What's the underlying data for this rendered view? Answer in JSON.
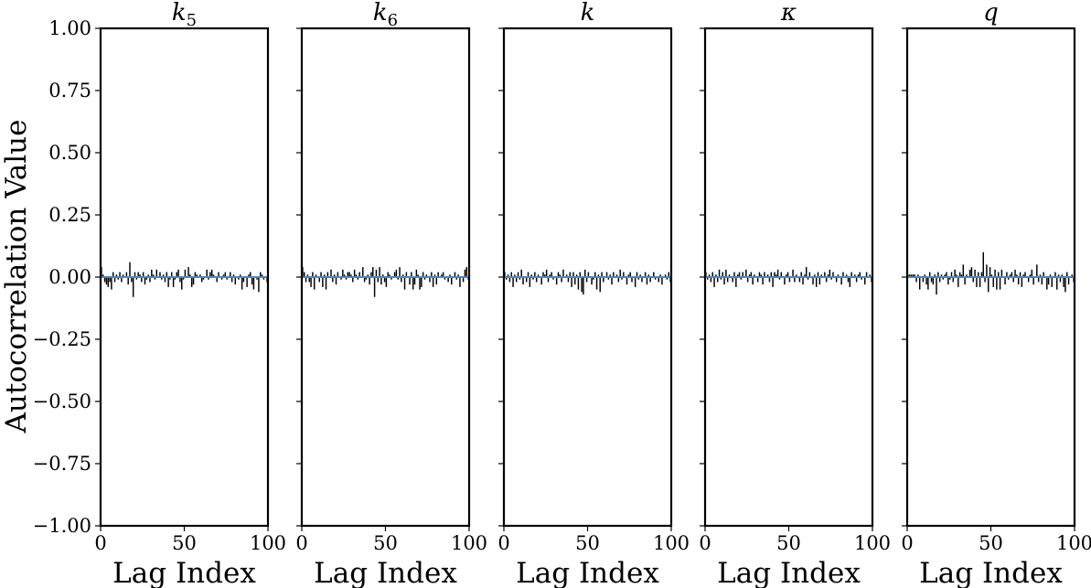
{
  "figure": {
    "ylabel": "Autocorrelation Value"
  },
  "style": {
    "bar_color": "#000000",
    "zero_line_color": "#4f86c0",
    "frame_color": "#000000"
  },
  "chart_data": [
    {
      "type": "bar",
      "title": "k5",
      "title_base": "k",
      "title_sub": "5",
      "xlabel": "Lag Index",
      "xlim": [
        0,
        100
      ],
      "ylim": [
        -1.0,
        1.0
      ],
      "xticks": [
        0,
        50,
        100
      ],
      "yticks": [
        -1.0,
        -0.75,
        -0.5,
        -0.25,
        0.0,
        0.25,
        0.5,
        0.75,
        1.0
      ],
      "grid": false,
      "values": [
        0.04,
        0.01,
        -0.02,
        -0.03,
        -0.04,
        -0.02,
        -0.05,
        0.02,
        -0.02,
        0.01,
        -0.01,
        0.02,
        -0.02,
        0.01,
        0.0,
        0.02,
        -0.03,
        0.06,
        -0.02,
        -0.08,
        0.02,
        -0.01,
        0.02,
        0.01,
        -0.02,
        0.02,
        -0.03,
        -0.01,
        0.01,
        -0.02,
        0.03,
        0.01,
        -0.01,
        0.03,
        0.0,
        0.02,
        -0.01,
        0.01,
        -0.02,
        0.02,
        -0.04,
        -0.01,
        0.02,
        -0.04,
        -0.01,
        0.02,
        0.03,
        -0.02,
        -0.05,
        -0.01,
        0.03,
        0.0,
        0.04,
        0.01,
        -0.04,
        -0.03,
        0.02,
        0.01,
        0.0,
        0.01,
        -0.02,
        -0.01,
        0.0,
        0.03,
        -0.01,
        0.02,
        0.03,
        0.01,
        0.0,
        -0.02,
        0.02,
        0.0,
        -0.01,
        0.01,
        0.02,
        -0.01,
        0.0,
        0.02,
        -0.02,
        0.01,
        -0.03,
        0.0,
        -0.01,
        0.01,
        -0.05,
        -0.02,
        0.0,
        -0.04,
        0.01,
        0.02,
        -0.03,
        -0.05,
        0.0,
        -0.01,
        -0.06,
        0.02,
        0.01,
        -0.01,
        0.0,
        -0.02
      ]
    },
    {
      "type": "bar",
      "title": "k6",
      "title_base": "k",
      "title_sub": "6",
      "xlabel": "Lag Index",
      "xlim": [
        0,
        100
      ],
      "ylim": [
        -1.0,
        1.0
      ],
      "xticks": [
        0,
        50,
        100
      ],
      "yticks": [
        -1.0,
        -0.75,
        -0.5,
        -0.25,
        0.0,
        0.25,
        0.5,
        0.75,
        1.0
      ],
      "grid": false,
      "values": [
        0.04,
        0.02,
        -0.02,
        0.01,
        -0.02,
        -0.04,
        0.02,
        -0.05,
        0.01,
        0.0,
        -0.02,
        0.02,
        -0.04,
        0.01,
        -0.05,
        0.02,
        0.0,
        0.03,
        -0.02,
        0.01,
        -0.03,
        0.02,
        0.0,
        -0.01,
        0.03,
        0.01,
        -0.01,
        0.02,
        0.02,
        0.01,
        -0.02,
        0.03,
        0.01,
        -0.01,
        0.02,
        0.0,
        0.04,
        -0.02,
        -0.01,
        0.01,
        -0.03,
        0.02,
        0.04,
        -0.08,
        0.03,
        -0.02,
        0.04,
        -0.03,
        0.01,
        -0.02,
        -0.04,
        0.02,
        0.01,
        -0.01,
        0.0,
        0.02,
        0.03,
        -0.01,
        0.04,
        -0.02,
        0.01,
        -0.05,
        0.02,
        0.0,
        -0.03,
        0.02,
        -0.05,
        -0.03,
        0.03,
        0.01,
        -0.05,
        -0.04,
        0.02,
        -0.01,
        0.01,
        0.0,
        -0.02,
        0.02,
        -0.04,
        0.01,
        -0.03,
        0.02,
        0.0,
        0.01,
        0.02,
        -0.01,
        0.0,
        -0.02,
        0.01,
        -0.03,
        0.0,
        0.02,
        -0.01,
        0.01,
        -0.04,
        0.0,
        -0.02,
        0.03,
        0.04,
        -0.01
      ]
    },
    {
      "type": "bar",
      "title": "k",
      "title_base": "k",
      "title_sub": "",
      "xlabel": "Lag Index",
      "xlim": [
        0,
        100
      ],
      "ylim": [
        -1.0,
        1.0
      ],
      "xticks": [
        0,
        50,
        100
      ],
      "yticks": [
        -1.0,
        -0.75,
        -0.5,
        -0.25,
        0.0,
        0.25,
        0.5,
        0.75,
        1.0
      ],
      "grid": false,
      "values": [
        0.02,
        -0.01,
        0.01,
        -0.02,
        0.02,
        -0.04,
        0.01,
        -0.02,
        0.02,
        -0.01,
        0.03,
        -0.03,
        0.0,
        -0.02,
        0.02,
        -0.04,
        0.01,
        -0.01,
        0.02,
        -0.02,
        0.01,
        0.0,
        -0.03,
        0.02,
        0.01,
        0.03,
        -0.02,
        0.01,
        0.02,
        -0.01,
        0.0,
        -0.03,
        0.02,
        0.01,
        -0.02,
        0.03,
        0.0,
        0.01,
        -0.02,
        0.02,
        -0.04,
        0.02,
        -0.03,
        0.01,
        -0.05,
        0.02,
        -0.06,
        -0.07,
        0.03,
        -0.02,
        0.02,
        0.0,
        -0.03,
        -0.01,
        0.02,
        -0.05,
        0.01,
        -0.06,
        0.02,
        -0.02,
        0.0,
        0.02,
        -0.01,
        0.01,
        -0.03,
        0.02,
        0.0,
        0.01,
        -0.02,
        0.03,
        -0.01,
        0.02,
        0.0,
        -0.03,
        0.01,
        0.02,
        -0.02,
        0.0,
        -0.04,
        0.02,
        -0.01,
        0.01,
        -0.02,
        0.0,
        0.02,
        -0.03,
        0.01,
        -0.02,
        0.0,
        0.02,
        -0.01,
        0.0,
        -0.02,
        0.01,
        -0.03,
        0.0,
        0.01,
        -0.01,
        0.02,
        -0.02
      ]
    },
    {
      "type": "bar",
      "title": "κ",
      "title_base": "κ",
      "title_sub": "",
      "xlabel": "Lag Index",
      "xlim": [
        0,
        100
      ],
      "ylim": [
        -1.0,
        1.0
      ],
      "xticks": [
        0,
        50,
        100
      ],
      "yticks": [
        -1.0,
        -0.75,
        -0.5,
        -0.25,
        0.0,
        0.25,
        0.5,
        0.75,
        1.0
      ],
      "grid": false,
      "values": [
        0.02,
        -0.01,
        0.01,
        -0.02,
        0.02,
        -0.04,
        0.01,
        -0.02,
        0.03,
        -0.01,
        0.02,
        -0.03,
        0.03,
        -0.02,
        0.01,
        0.0,
        -0.02,
        0.02,
        -0.04,
        0.01,
        0.02,
        -0.01,
        0.02,
        0.0,
        0.03,
        -0.02,
        0.01,
        0.02,
        -0.03,
        0.01,
        0.0,
        -0.02,
        0.02,
        0.01,
        -0.03,
        0.02,
        0.0,
        0.01,
        -0.02,
        0.02,
        -0.04,
        0.02,
        0.01,
        0.03,
        -0.01,
        0.02,
        0.0,
        -0.03,
        0.01,
        0.02,
        -0.02,
        0.0,
        0.03,
        -0.02,
        0.01,
        0.0,
        -0.02,
        0.02,
        -0.03,
        0.01,
        0.04,
        -0.01,
        0.02,
        0.0,
        -0.03,
        0.01,
        -0.04,
        0.02,
        -0.03,
        0.01,
        0.0,
        0.02,
        -0.02,
        0.01,
        0.03,
        -0.01,
        0.02,
        0.0,
        -0.02,
        0.01,
        0.0,
        -0.03,
        0.02,
        0.0,
        0.01,
        -0.02,
        -0.04,
        0.02,
        0.0,
        0.01,
        -0.02,
        0.01,
        0.02,
        -0.01,
        0.0,
        -0.03,
        0.02,
        0.0,
        0.01,
        -0.02
      ]
    },
    {
      "type": "bar",
      "title": "q",
      "title_base": "q",
      "title_sub": "",
      "xlabel": "Lag Index",
      "xlim": [
        0,
        100
      ],
      "ylim": [
        -1.0,
        1.0
      ],
      "xticks": [
        0,
        50,
        100
      ],
      "yticks": [
        -1.0,
        -0.75,
        -0.5,
        -0.25,
        0.0,
        0.25,
        0.5,
        0.75,
        1.0
      ],
      "grid": false,
      "values": [
        0.01,
        0.01,
        0.01,
        0.01,
        0.01,
        -0.02,
        0.01,
        -0.05,
        0.0,
        -0.02,
        0.01,
        -0.03,
        -0.05,
        0.02,
        -0.02,
        -0.03,
        0.01,
        -0.07,
        0.02,
        -0.02,
        0.01,
        -0.01,
        0.01,
        0.02,
        -0.03,
        -0.01,
        0.02,
        -0.02,
        0.03,
        0.01,
        -0.04,
        0.02,
        0.01,
        0.05,
        -0.03,
        0.01,
        0.0,
        0.03,
        0.04,
        -0.02,
        0.03,
        -0.04,
        0.02,
        -0.04,
        0.02,
        0.1,
        -0.02,
        0.05,
        -0.06,
        0.04,
        0.01,
        -0.04,
        0.03,
        -0.05,
        0.02,
        -0.05,
        0.03,
        0.0,
        -0.03,
        0.02,
        -0.01,
        0.01,
        0.02,
        -0.02,
        0.03,
        0.01,
        -0.03,
        0.02,
        -0.04,
        0.01,
        0.02,
        0.0,
        -0.02,
        0.01,
        0.03,
        -0.03,
        0.0,
        0.05,
        -0.02,
        0.01,
        -0.03,
        0.02,
        0.0,
        -0.05,
        -0.03,
        0.01,
        -0.04,
        0.0,
        0.02,
        -0.05,
        0.01,
        -0.02,
        0.01,
        -0.04,
        -0.06,
        0.02,
        -0.03,
        0.0,
        0.01,
        -0.02
      ]
    }
  ]
}
